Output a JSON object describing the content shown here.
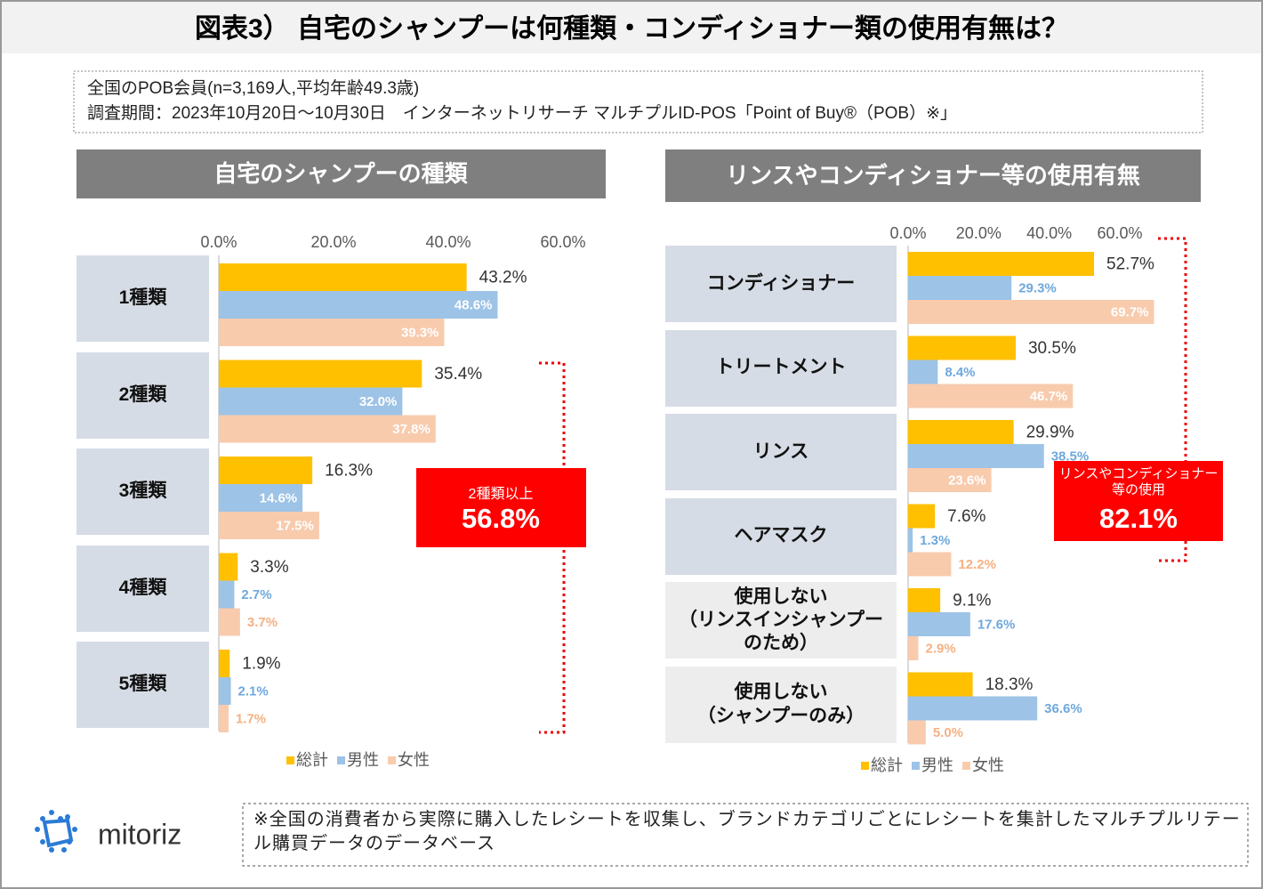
{
  "header": {
    "title": "図表3） 自宅のシャンプーは何種類・コンディショナー類の使用有無は？"
  },
  "note": {
    "lines": [
      "全国のPOB会員(n=3,169人,平均年齢49.3歳)",
      "調査期間：2023年10月20日～10月30日　インターネットリサーチ マルチプルID-POS「Point of Buy®（POB）※」"
    ]
  },
  "footer": {
    "logo": "mitoriz",
    "note": "※全国の消費者から実際に購入したレシートを収集し、ブランドカテゴリごとにレシートを集計したマルチプルリテール購買データのデータベース"
  },
  "chart_data": [
    {
      "type": "hbar",
      "title": "自宅のシャンプーの種類",
      "categories": [
        "1種類",
        "2種類",
        "3種類",
        "4種類",
        "5種類"
      ],
      "series": [
        {
          "name": "総計",
          "color": "#FFC000",
          "values": [
            43.2,
            35.4,
            16.3,
            3.3,
            1.9
          ],
          "value_labels": [
            "43.2%",
            "35.4%",
            "16.3%",
            "3.3%",
            "1.9%"
          ]
        },
        {
          "name": "男性",
          "color": "#9DC3E6",
          "values": [
            48.6,
            32.0,
            14.6,
            2.7,
            2.1
          ],
          "value_labels": [
            "48.6%",
            "32.0%",
            "14.6%",
            "2.7%",
            "2.1%"
          ]
        },
        {
          "name": "女性",
          "color": "#F8CBAD",
          "values": [
            39.3,
            37.8,
            17.5,
            3.7,
            1.7
          ],
          "value_labels": [
            "39.3%",
            "37.8%",
            "17.5%",
            "3.7%",
            "1.7%"
          ]
        }
      ],
      "xlim": [
        0,
        60
      ],
      "xticks": [
        {
          "value": 0,
          "label": "0.0%"
        },
        {
          "value": 20,
          "label": "20.0%"
        },
        {
          "value": 40,
          "label": "40.0%"
        },
        {
          "value": 60,
          "label": "60.0%"
        }
      ],
      "annotation": {
        "label": "2種類以上",
        "value": 56.8,
        "value_label": "56.8%"
      }
    },
    {
      "type": "hbar",
      "title": "リンスやコンディショナー等の使用有無",
      "categories": [
        "コンディショナー",
        "トリートメント",
        "リンス",
        "ヘアマスク",
        "使用しない\n（リンスインシャンプーのため）",
        "使用しない\n（シャンプーのみ）"
      ],
      "series": [
        {
          "name": "総計",
          "color": "#FFC000",
          "values": [
            52.7,
            30.5,
            29.9,
            7.6,
            9.1,
            18.3
          ],
          "value_labels": [
            "52.7%",
            "30.5%",
            "29.9%",
            "7.6%",
            "9.1%",
            "18.3%"
          ]
        },
        {
          "name": "男性",
          "color": "#9DC3E6",
          "values": [
            29.3,
            8.4,
            38.5,
            1.3,
            17.6,
            36.6
          ],
          "value_labels": [
            "29.3%",
            "8.4%",
            "38.5%",
            "1.3%",
            "17.6%",
            "36.6%"
          ]
        },
        {
          "name": "女性",
          "color": "#F8CBAD",
          "values": [
            69.7,
            46.7,
            23.6,
            12.2,
            2.9,
            5.0
          ],
          "value_labels": [
            "69.7%",
            "46.7%",
            "23.6%",
            "12.2%",
            "2.9%",
            "5.0%"
          ]
        }
      ],
      "xlim": [
        0,
        60
      ],
      "xticks": [
        {
          "value": 0,
          "label": "0.0%"
        },
        {
          "value": 20,
          "label": "20.0%"
        },
        {
          "value": 40,
          "label": "40.0%"
        },
        {
          "value": 60,
          "label": "60.0%"
        }
      ],
      "annotation": {
        "label": "リンスやコンディショナー等の使用",
        "value": 82.1,
        "value_label": "82.1%"
      }
    }
  ]
}
